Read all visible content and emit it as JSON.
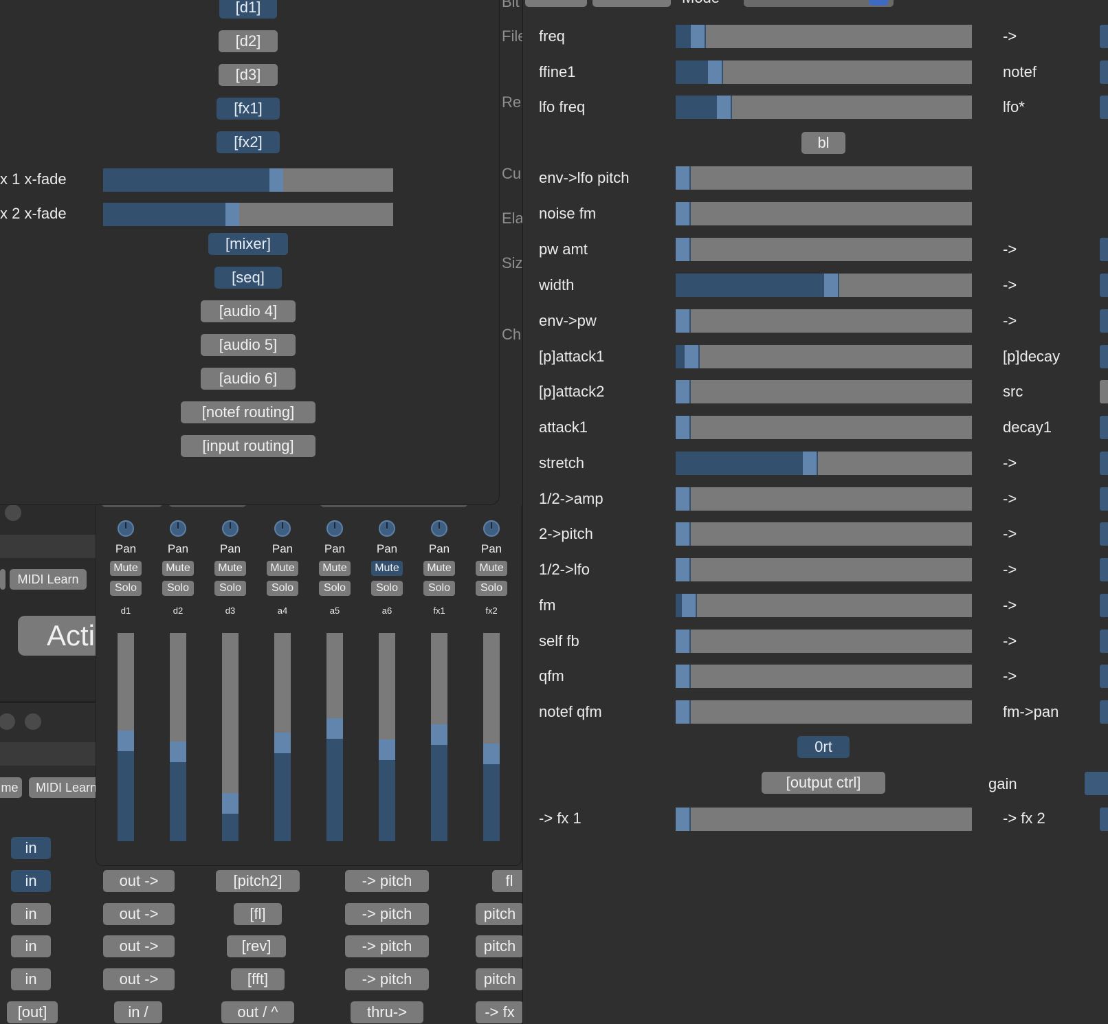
{
  "left_panel": {
    "buttons": [
      {
        "label": "[d1]",
        "active": true
      },
      {
        "label": "[d2]",
        "active": false
      },
      {
        "label": "[d3]",
        "active": false
      },
      {
        "label": "[fx1]",
        "active": true
      },
      {
        "label": "[fx2]",
        "active": true
      },
      {
        "label": "[mixer]",
        "active": true
      },
      {
        "label": "[seq]",
        "active": true
      },
      {
        "label": "[audio 4]",
        "active": false
      },
      {
        "label": "[audio 5]",
        "active": false
      },
      {
        "label": "[audio 6]",
        "active": false
      },
      {
        "label": "[notef routing]",
        "active": false
      },
      {
        "label": "[input routing]",
        "active": false
      }
    ],
    "crossfades": [
      {
        "label": "x 1 x-fade",
        "value": 0.62
      },
      {
        "label": "x 2 x-fade",
        "value": 0.47
      }
    ]
  },
  "file_info": {
    "partial_labels": [
      "Bit",
      "File",
      "Re",
      "Cu",
      "Ela",
      "Siz",
      "Ch"
    ]
  },
  "mixer": {
    "pan_label": "Pan",
    "mute_label": "Mute",
    "solo_label": "Solo",
    "channels": [
      {
        "name": "d1",
        "fader": 0.53,
        "muted": false
      },
      {
        "name": "d2",
        "fader": 0.48,
        "muted": false
      },
      {
        "name": "d3",
        "fader": 0.23,
        "muted": false
      },
      {
        "name": "a4",
        "fader": 0.52,
        "muted": false
      },
      {
        "name": "a5",
        "fader": 0.59,
        "muted": false
      },
      {
        "name": "a6",
        "fader": 0.49,
        "muted": false
      },
      {
        "name": "fx1",
        "fader": 0.56,
        "muted": false
      },
      {
        "name": "fx2",
        "fader": 0.47,
        "muted": false
      }
    ]
  },
  "side_window": {
    "midi_learn": "MIDI Learn",
    "midi_learn_2": "MIDI Learn",
    "name_fragment": "me",
    "action_fragment": "Acti"
  },
  "routing": {
    "rows": [
      [
        "in",
        "",
        "",
        "",
        ""
      ],
      [
        "in",
        "out ->",
        "[pitch2]",
        "-> pitch",
        "fl"
      ],
      [
        "in",
        "out ->",
        "[fl]",
        "-> pitch",
        "pitch"
      ],
      [
        "in",
        "out ->",
        "[rev]",
        "-> pitch",
        "pitch"
      ],
      [
        "in",
        "out ->",
        "[fft]",
        "-> pitch",
        "pitch"
      ],
      [
        "[out]",
        "in /",
        "out / ^",
        "thru->",
        "-> fx"
      ]
    ],
    "in_active": [
      true,
      true,
      false,
      false,
      false
    ]
  },
  "synth": {
    "header_fragment": "Mode",
    "params": [
      {
        "label": "freq",
        "value": 0.05,
        "right": "->"
      },
      {
        "label": "ffine1",
        "value": 0.11,
        "right": "notef"
      },
      {
        "label": "lfo freq",
        "value": 0.14,
        "right": "lfo*"
      },
      {
        "label": "env->lfo pitch",
        "value": 0.0,
        "right": ""
      },
      {
        "label": "noise fm",
        "value": 0.0,
        "right": ""
      },
      {
        "label": "pw amt",
        "value": 0.0,
        "right": "->"
      },
      {
        "label": "width",
        "value": 0.5,
        "right": "->"
      },
      {
        "label": "env->pw",
        "value": 0.0,
        "right": "->"
      },
      {
        "label": "[p]attack1",
        "value": 0.03,
        "right": "[p]decay"
      },
      {
        "label": "[p]attack2",
        "value": 0.0,
        "right": "src"
      },
      {
        "label": "attack1",
        "value": 0.0,
        "right": "decay1"
      },
      {
        "label": "stretch",
        "value": 0.43,
        "right": "->"
      },
      {
        "label": "1/2->amp",
        "value": 0.0,
        "right": "->"
      },
      {
        "label": "2->pitch",
        "value": 0.0,
        "right": "->"
      },
      {
        "label": "1/2->lfo",
        "value": 0.0,
        "right": "->"
      },
      {
        "label": "fm",
        "value": 0.02,
        "right": "->"
      },
      {
        "label": "self fb",
        "value": 0.0,
        "right": "->"
      },
      {
        "label": "qfm",
        "value": 0.0,
        "right": "->"
      },
      {
        "label": "notef qfm",
        "value": 0.0,
        "right": "fm->pan"
      }
    ],
    "bl_button": "bl",
    "ort_button": "0rt",
    "output_ctrl": "[output ctrl]",
    "gain_label": "gain",
    "fx1_send": {
      "label": "-> fx 1",
      "value": 0.0,
      "right": "-> fx 2"
    }
  },
  "colors": {
    "background": "#2d2d2d",
    "panel": "#333333",
    "button": "#7a7a7a",
    "accent": "#34506f",
    "thumb": "#6285ad"
  }
}
